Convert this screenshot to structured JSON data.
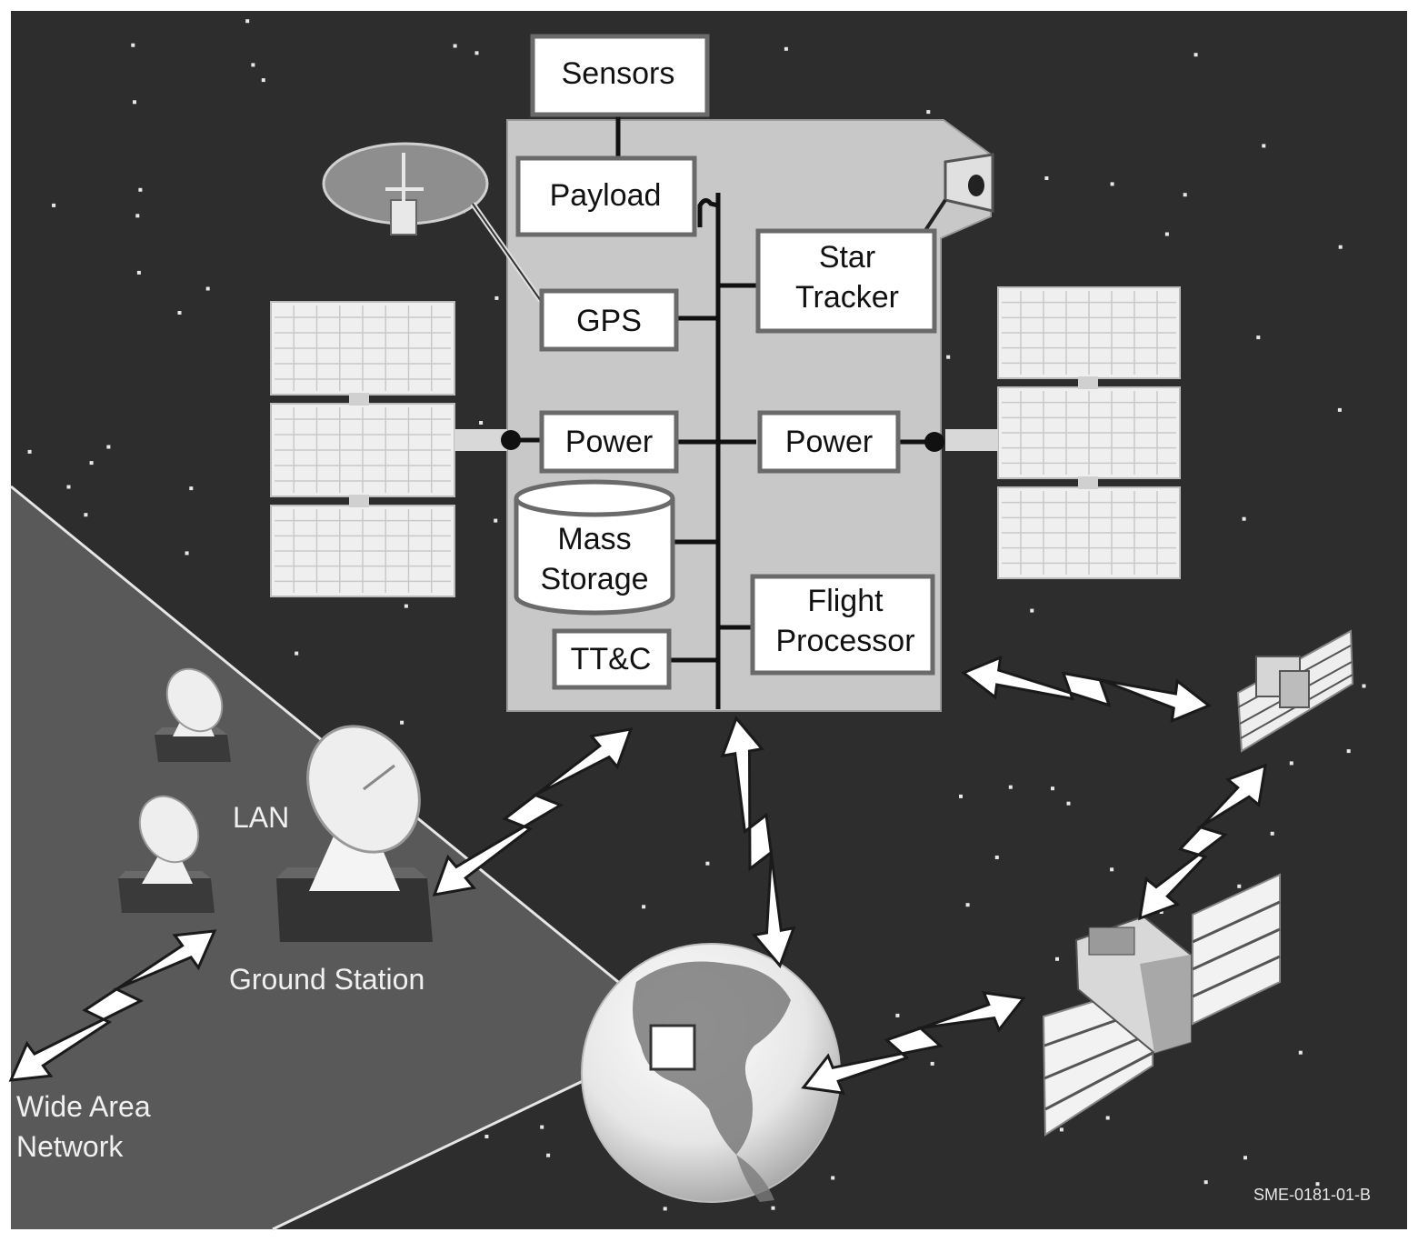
{
  "diagram": {
    "spacecraft_components": {
      "sensors": "Sensors",
      "payload": "Payload",
      "gps": "GPS",
      "star_tracker_line1": "Star",
      "star_tracker_line2": "Tracker",
      "power_left": "Power",
      "power_right": "Power",
      "mass_storage_line1": "Mass",
      "mass_storage_line2": "Storage",
      "flight_processor_line1": "Flight",
      "flight_processor_line2": "Processor",
      "ttc": "TT&C"
    },
    "ground": {
      "lan": "LAN",
      "ground_station": "Ground Station",
      "wan_line1": "Wide Area",
      "wan_line2": "Network"
    },
    "figure_id": "SME-0181-01-B",
    "colors": {
      "space": "#2d2d2d",
      "ground_area": "#5a5a5a",
      "bus_body": "#c8c8c8",
      "box_fill": "#ffffff",
      "box_border": "#6a6a6a"
    }
  }
}
